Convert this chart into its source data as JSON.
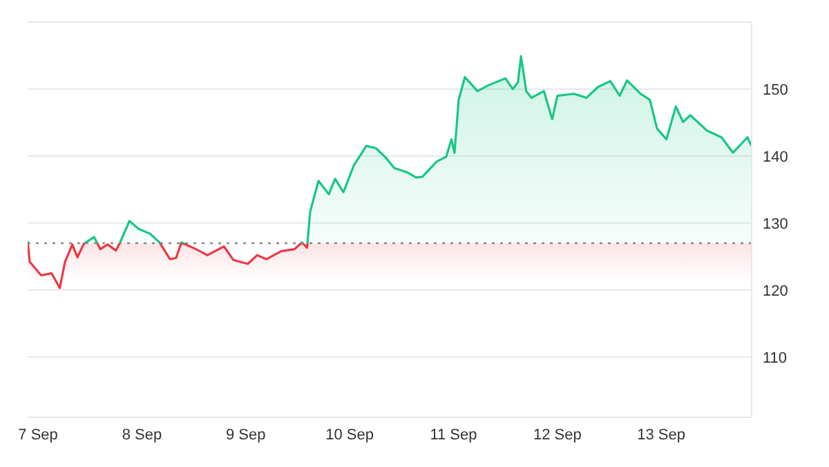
{
  "chart_data": {
    "type": "area",
    "x": [
      "--09-06T21:36",
      "--09-06T22:05",
      "--09-07T00:43",
      "--09-07T03:07",
      "--09-07T05:02",
      "--09-07T06:14",
      "--09-07T07:55",
      "--09-07T09:07",
      "--09-07T10:34",
      "--09-07T12:58",
      "--09-07T14:24",
      "--09-07T16:05",
      "--09-07T18:00",
      "--09-07T18:58",
      "--09-07T21:07",
      "--09-07T23:17",
      "--09-08T01:55",
      "--09-08T04:05",
      "--09-08T06:29",
      "--09-08T07:55",
      "--09-08T09:07",
      "--09-08T12:29",
      "--09-08T15:07",
      "--09-08T18:58",
      "--09-08T21:07",
      "--09-09T00:29",
      "--09-09T02:38",
      "--09-09T04:48",
      "--09-09T08:10",
      "--09-09T11:17",
      "--09-09T12:58",
      "--09-09T14:10",
      "--09-09T14:53",
      "--09-09T16:48",
      "--09-09T19:12",
      "--09-09T20:38",
      "--09-09T22:34",
      "--09-10T00:58",
      "--09-10T03:50",
      "--09-10T06:00",
      "--09-10T08:10",
      "--09-10T10:19",
      "--09-10T13:12",
      "--09-10T15:22",
      "--09-10T16:48",
      "--09-10T20:10",
      "--09-10T22:19",
      "--09-10T23:31",
      "--09-11T00:14",
      "--09-11T01:12",
      "--09-11T02:38",
      "--09-11T05:31",
      "--09-11T08:10",
      "--09-11T12:00",
      "--09-11T13:41",
      "--09-11T14:53",
      "--09-11T15:36",
      "--09-11T16:48",
      "--09-11T18:00",
      "--09-11T20:53",
      "--09-11T22:48",
      "--09-12T00:00",
      "--09-12T03:50",
      "--09-12T06:43",
      "--09-12T09:22",
      "--09-12T12:14",
      "--09-12T14:24",
      "--09-12T16:05",
      "--09-12T19:12",
      "--09-12T21:22",
      "--09-12T23:02",
      "--09-13T01:12",
      "--09-13T03:22",
      "--09-13T05:02",
      "--09-13T06:43",
      "--09-13T10:34",
      "--09-13T13:55",
      "--09-13T16:34",
      "--09-13T19:55",
      "--09-13T20:53"
    ],
    "series": [
      {
        "color": "#16c784",
        "values": [
          127.3,
          124.2,
          122.2,
          122.5,
          120.3,
          124.2,
          126.8,
          124.9,
          126.9,
          127.9,
          126.1,
          126.8,
          125.9,
          127.1,
          130.3,
          129.1,
          128.4,
          127.1,
          124.6,
          124.8,
          127.1,
          126.1,
          125.2,
          126.5,
          124.5,
          123.9,
          125.2,
          124.6,
          125.8,
          126.1,
          127.1,
          126.3,
          131.7,
          136.3,
          134.3,
          136.6,
          134.6,
          138.6,
          141.5,
          141.2,
          139.9,
          138.2,
          137.6,
          136.8,
          136.9,
          139.2,
          139.9,
          142.5,
          140.5,
          148.4,
          151.8,
          149.7,
          150.6,
          151.6,
          150,
          151,
          154.9,
          149.7,
          148.7,
          149.7,
          145.5,
          149,
          149.3,
          148.7,
          150.3,
          151.2,
          149,
          151.3,
          149.3,
          148.4,
          144.1,
          142.5,
          147.4,
          145.1,
          146.1,
          143.8,
          142.8,
          140.5,
          142.8,
          141.5
        ]
      }
    ],
    "xlim": [
      "--09-06T21:36",
      "--09-13T20:53"
    ],
    "xticks": [
      {
        "value": "--09-07",
        "label": "7 Sep"
      },
      {
        "value": "--09-08",
        "label": "8 Sep"
      },
      {
        "value": "--09-09",
        "label": "9 Sep"
      },
      {
        "value": "--09-10",
        "label": "10 Sep"
      },
      {
        "value": "--09-11",
        "label": "11 Sep"
      },
      {
        "value": "--09-12",
        "label": "12 Sep"
      },
      {
        "value": "--09-13",
        "label": "13 Sep"
      }
    ],
    "ylim": [
      101,
      160
    ],
    "yticks": [
      110,
      120,
      130,
      140,
      150
    ],
    "grid": "y",
    "ref_lines": [
      {
        "axis": "y",
        "value": 127,
        "color": "#888888",
        "line_style": "dotted"
      }
    ]
  }
}
